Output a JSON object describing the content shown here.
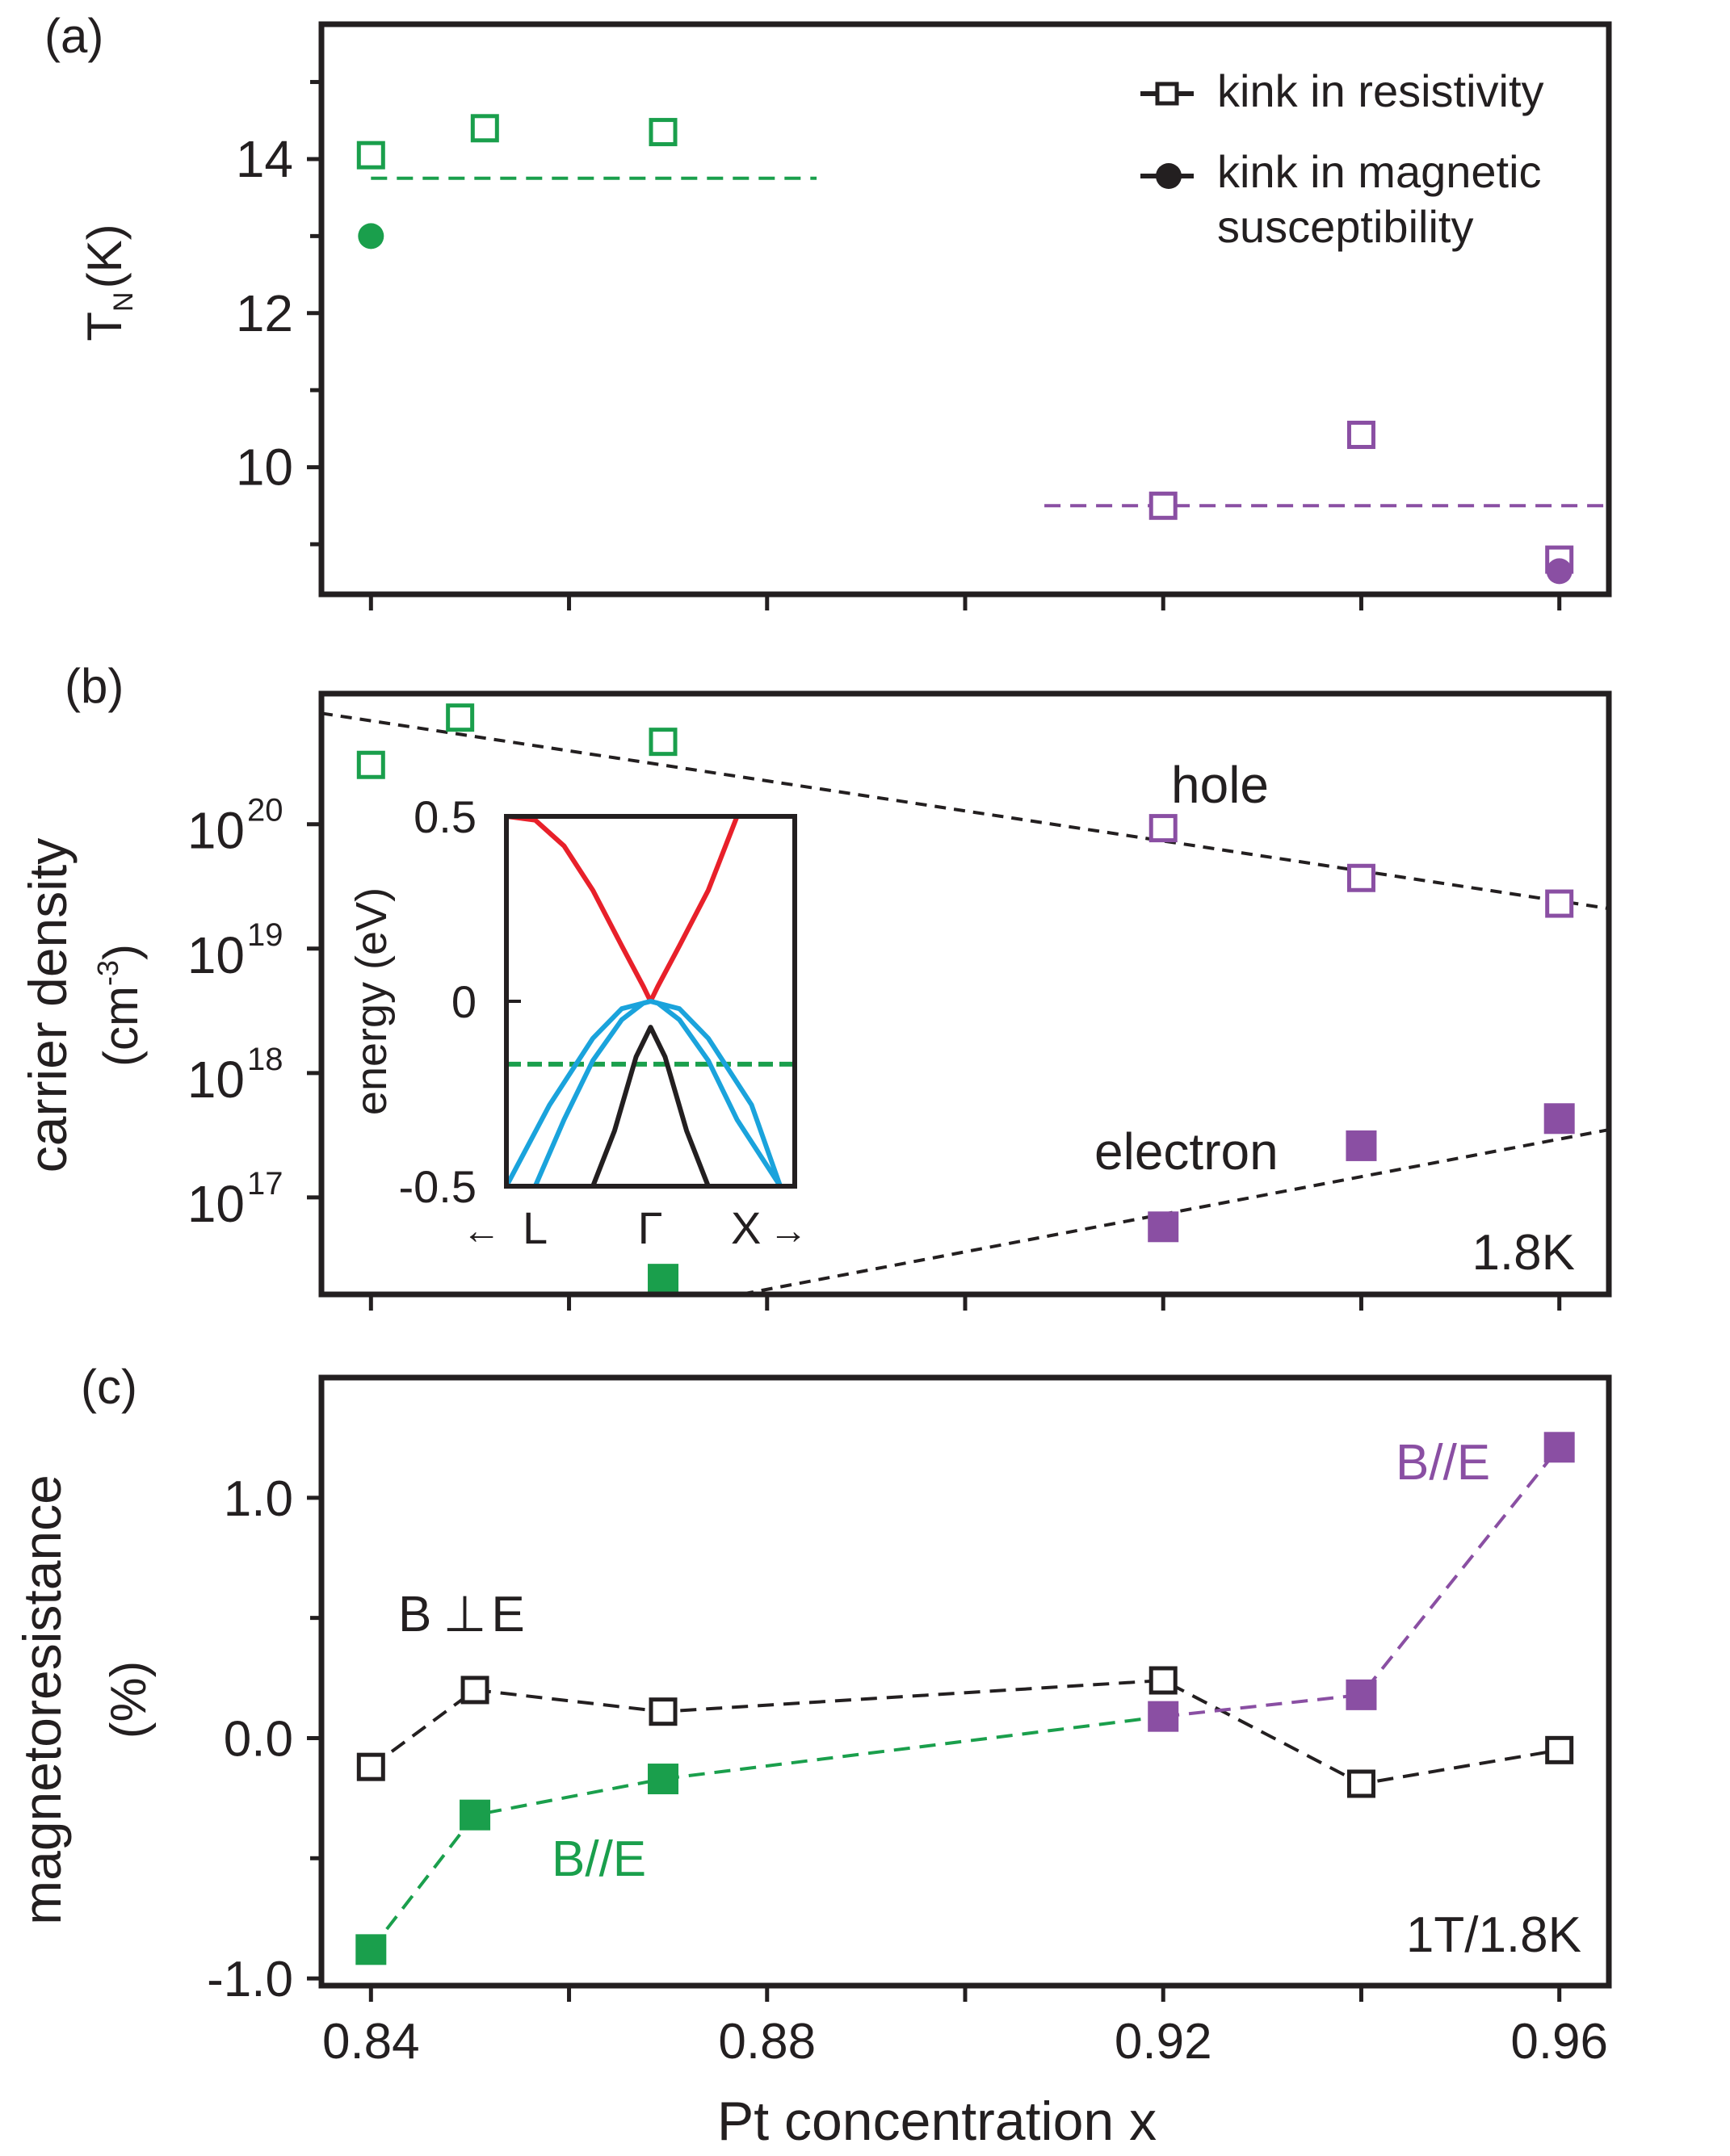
{
  "chart_data": [
    {
      "type": "scatter",
      "panel_label": "(a)",
      "xlim": [
        0.835,
        0.965
      ],
      "ylabel_main": "T",
      "ylabel_sub": "N",
      "ylabel_unit": "(K)",
      "ylim": [
        8.35,
        15.75
      ],
      "yticks": [
        {
          "v": 10,
          "label": "10"
        },
        {
          "v": 12,
          "label": "12"
        },
        {
          "v": 14,
          "label": "14"
        }
      ],
      "yticks_minor": [
        9,
        11,
        13,
        15
      ],
      "xticks": [
        0.84,
        0.86,
        0.88,
        0.9,
        0.92,
        0.94,
        0.96
      ],
      "legend": {
        "items": [
          "kink in resistivity",
          "kink in magnetic",
          "susceptibility"
        ]
      },
      "series": [
        {
          "name": "kink in resistivity",
          "marker": "open-square",
          "color": "#1a9f4c",
          "points": [
            {
              "x": 0.84,
              "y": 14.05
            },
            {
              "x": 0.8515,
              "y": 14.4
            },
            {
              "x": 0.8695,
              "y": 14.35
            }
          ]
        },
        {
          "name": "kink in magnetic susceptibility",
          "marker": "filled-circle",
          "color": "#1a9f4c",
          "points": [
            {
              "x": 0.84,
              "y": 13.0
            }
          ]
        },
        {
          "name": "kink in resistivity",
          "marker": "open-square",
          "color": "#8a4fa3",
          "points": [
            {
              "x": 0.92,
              "y": 9.5
            },
            {
              "x": 0.94,
              "y": 10.42
            },
            {
              "x": 0.96,
              "y": 8.8
            }
          ]
        },
        {
          "name": "kink in magnetic susceptibility",
          "marker": "filled-circle",
          "color": "#8a4fa3",
          "points": [
            {
              "x": 0.96,
              "y": 8.65
            }
          ]
        }
      ],
      "guides": [
        {
          "color": "#1a9f4c",
          "points": [
            {
              "x": 0.84,
              "y": 13.75
            },
            {
              "x": 0.885,
              "y": 13.75
            }
          ]
        },
        {
          "color": "#8a4fa3",
          "points": [
            {
              "x": 0.908,
              "y": 9.5
            },
            {
              "x": 0.965,
              "y": 9.5
            }
          ]
        }
      ]
    },
    {
      "type": "scatter",
      "panel_label": "(b)",
      "yscale": "log",
      "xlim": [
        0.835,
        0.965
      ],
      "ylim_log10": [
        16.22,
        21.05
      ],
      "ylabel_line1": "carrier density",
      "ylabel_line2_base": "(cm",
      "ylabel_line2_sup": "-3",
      "ylabel_line2_end": ")",
      "yticks": [
        {
          "exp": 17,
          "base": "10",
          "sup": "17"
        },
        {
          "exp": 18,
          "base": "10",
          "sup": "18"
        },
        {
          "exp": 19,
          "base": "10",
          "sup": "19"
        },
        {
          "exp": 20,
          "base": "10",
          "sup": "20"
        }
      ],
      "xticks": [
        0.84,
        0.86,
        0.88,
        0.9,
        0.92,
        0.94,
        0.96
      ],
      "annotations": {
        "hole": "hole",
        "electron": "electron",
        "temperature": "1.8K"
      },
      "series": [
        {
          "name": "hole",
          "marker": "open-square",
          "color": "#1a9f4c",
          "points": [
            {
              "x": 0.84,
              "y": 3e+20
            },
            {
              "x": 0.849,
              "y": 7.2e+20
            },
            {
              "x": 0.8695,
              "y": 4.6e+20
            }
          ]
        },
        {
          "name": "hole",
          "marker": "open-square",
          "color": "#8a4fa3",
          "points": [
            {
              "x": 0.92,
              "y": 9.3e+19
            },
            {
              "x": 0.94,
              "y": 3.7e+19
            },
            {
              "x": 0.96,
              "y": 2.3e+19
            }
          ]
        },
        {
          "name": "electron",
          "marker": "filled-square",
          "color": "#1a9f4c",
          "points": [
            {
              "x": 0.8695,
              "y": 2.2e+16
            }
          ]
        },
        {
          "name": "electron",
          "marker": "filled-square",
          "color": "#8a4fa3",
          "points": [
            {
              "x": 0.92,
              "y": 5.8e+16
            },
            {
              "x": 0.94,
              "y": 2.6e+17
            },
            {
              "x": 0.96,
              "y": 4.3e+17
            }
          ]
        }
      ],
      "guides": [
        {
          "color": "#231f20",
          "points": [
            {
              "x": 0.835,
              "y": 7.8e+20
            },
            {
              "x": 0.965,
              "y": 2.1e+19
            }
          ]
        },
        {
          "color": "#231f20",
          "points": [
            {
              "x": 0.8775,
              "y": 1.67e+16
            },
            {
              "x": 0.965,
              "y": 3.5e+17
            }
          ]
        }
      ],
      "inset": {
        "type": "line",
        "ylabel": "energy (eV)",
        "ylim": [
          -0.5,
          0.5
        ],
        "xlim": [
          -1,
          1
        ],
        "yticks": [
          {
            "v": 0.5,
            "label": "0.5"
          },
          {
            "v": 0,
            "label": "0"
          },
          {
            "v": -0.5,
            "label": "-0.5"
          }
        ],
        "xlabels": {
          "left_arrow": "←",
          "left": "L",
          "center": "Γ",
          "right": "X",
          "right_arrow": "→"
        },
        "fermi_level": {
          "value": -0.17,
          "color": "#1a9f4c"
        },
        "bands": [
          {
            "name": "conduction",
            "color": "#e8202a",
            "x": [
              -1.0,
              -0.8,
              -0.6,
              -0.4,
              -0.2,
              -0.05,
              0.0,
              0.05,
              0.2,
              0.4,
              0.6
            ],
            "y": [
              0.5,
              0.49,
              0.42,
              0.3,
              0.15,
              0.04,
              0.0,
              0.04,
              0.15,
              0.3,
              0.5
            ]
          },
          {
            "name": "valence-1",
            "color": "#1aa3dc",
            "x": [
              -1.0,
              -0.7,
              -0.4,
              -0.2,
              0.0,
              0.2,
              0.4,
              0.7,
              0.9
            ],
            "y": [
              -0.5,
              -0.28,
              -0.1,
              -0.02,
              0.0,
              -0.02,
              -0.1,
              -0.28,
              -0.5
            ]
          },
          {
            "name": "valence-2",
            "color": "#1aa3dc",
            "x": [
              -0.8,
              -0.6,
              -0.4,
              -0.2,
              -0.05,
              0.0,
              0.05,
              0.2,
              0.4,
              0.6,
              0.9
            ],
            "y": [
              -0.5,
              -0.32,
              -0.16,
              -0.05,
              -0.005,
              0.0,
              -0.005,
              -0.05,
              -0.16,
              -0.32,
              -0.5
            ]
          },
          {
            "name": "valence-3",
            "color": "#231f20",
            "x": [
              -0.4,
              -0.25,
              -0.1,
              0.0,
              0.1,
              0.25,
              0.4
            ],
            "y": [
              -0.5,
              -0.35,
              -0.15,
              -0.07,
              -0.15,
              -0.35,
              -0.5
            ]
          }
        ]
      }
    },
    {
      "type": "line",
      "panel_label": "(c)",
      "xlim": [
        0.835,
        0.965
      ],
      "ylim": [
        -1.03,
        1.5
      ],
      "ylabel_line1": "magnetoresistance",
      "ylabel_line2": "(%)",
      "xlabel": "Pt concentration x",
      "yticks": [
        {
          "v": -1.0,
          "label": "-1.0"
        },
        {
          "v": 0.0,
          "label": "0.0"
        },
        {
          "v": 1.0,
          "label": "1.0"
        }
      ],
      "yticks_minor": [
        -0.5,
        0.5
      ],
      "xticks": [
        {
          "v": 0.84,
          "label": "0.84"
        },
        {
          "v": 0.86,
          "label": ""
        },
        {
          "v": 0.88,
          "label": "0.88"
        },
        {
          "v": 0.9,
          "label": ""
        },
        {
          "v": 0.92,
          "label": "0.92"
        },
        {
          "v": 0.94,
          "label": ""
        },
        {
          "v": 0.96,
          "label": "0.96"
        }
      ],
      "annotations": {
        "perp_b": "B",
        "perp_sym": "⊥",
        "perp_e": "E",
        "para_green": "B//E",
        "para_purple": "B//E",
        "condition": "1T/1.8K"
      },
      "series": [
        {
          "name": "B ⊥ E",
          "marker": "open-square",
          "color": "#231f20",
          "x": [
            0.84,
            0.8505,
            0.8695,
            0.92,
            0.94,
            0.96
          ],
          "y": [
            -0.12,
            0.2,
            0.11,
            0.24,
            -0.19,
            -0.05
          ]
        },
        {
          "name": "B//E",
          "marker": "filled-square",
          "color": "#1a9f4c",
          "x": [
            0.84,
            0.8505,
            0.8695
          ],
          "y": [
            -0.88,
            -0.32,
            -0.17
          ]
        },
        {
          "name": "B//E",
          "marker": "filled-square",
          "color": "#8a4fa3",
          "x": [
            0.92,
            0.94,
            0.96
          ],
          "y": [
            0.09,
            0.18,
            1.21
          ]
        }
      ],
      "connectors": [
        {
          "color": "#1a9f4c",
          "x": [
            0.8695,
            0.92
          ],
          "y": [
            -0.17,
            0.09
          ]
        }
      ]
    }
  ]
}
